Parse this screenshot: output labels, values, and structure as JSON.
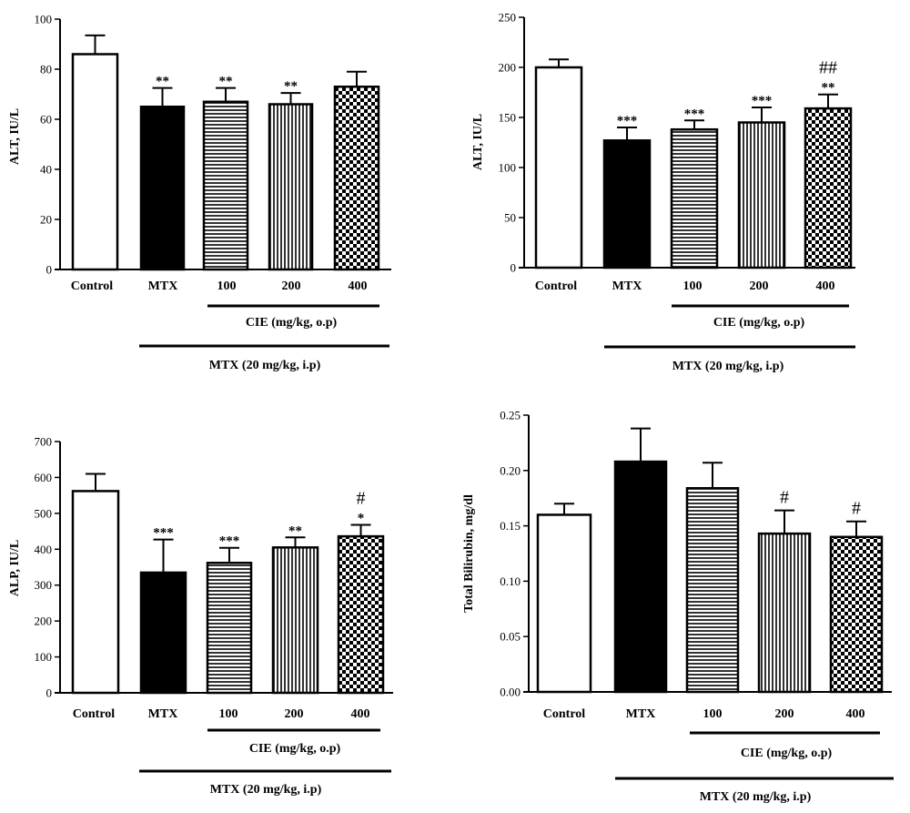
{
  "figure": {
    "groups": {
      "cie": "CIE (mg/kg, o.p)",
      "mtx": "MTX (20 mg/kg, i.p)"
    },
    "fills": [
      "open",
      "solid",
      "horizontal",
      "vertical",
      "checker"
    ]
  },
  "chart_data": [
    {
      "type": "bar",
      "ylabel": "ALT, IU/L",
      "categories": [
        "Control",
        "MTX",
        "100",
        "200",
        "400"
      ],
      "values": [
        86,
        65,
        67,
        66,
        73
      ],
      "errors": [
        7.5,
        7.5,
        5.5,
        4.5,
        6
      ],
      "ylim": [
        0,
        100
      ],
      "yticks": [
        "0",
        "20",
        "40",
        "60",
        "80",
        "100"
      ],
      "annotations": [
        [
          "",
          ""
        ],
        [
          "**",
          ""
        ],
        [
          "**",
          ""
        ],
        [
          "**",
          ""
        ],
        [
          "",
          ""
        ]
      ],
      "grid": false
    },
    {
      "type": "bar",
      "ylabel": "ALT, IU/L",
      "categories": [
        "Control",
        "MTX",
        "100",
        "200",
        "400"
      ],
      "values": [
        200,
        127,
        138,
        145,
        159
      ],
      "errors": [
        8,
        13,
        9,
        15,
        14
      ],
      "ylim": [
        0,
        250
      ],
      "yticks": [
        "0",
        "50",
        "100",
        "150",
        "200",
        "250"
      ],
      "annotations": [
        [
          "",
          ""
        ],
        [
          "***",
          ""
        ],
        [
          "***",
          ""
        ],
        [
          "***",
          ""
        ],
        [
          "**",
          "##"
        ]
      ],
      "grid": false
    },
    {
      "type": "bar",
      "ylabel": "ALP, IU/L",
      "categories": [
        "Control",
        "MTX",
        "100",
        "200",
        "400"
      ],
      "values": [
        562,
        335,
        362,
        405,
        436
      ],
      "errors": [
        48,
        92,
        42,
        28,
        32
      ],
      "ylim": [
        0,
        700
      ],
      "yticks": [
        "0",
        "100",
        "200",
        "300",
        "400",
        "500",
        "600",
        "700"
      ],
      "annotations": [
        [
          "",
          ""
        ],
        [
          "***",
          ""
        ],
        [
          "***",
          ""
        ],
        [
          "**",
          ""
        ],
        [
          "*",
          "#"
        ]
      ],
      "grid": false
    },
    {
      "type": "bar",
      "ylabel": "Total Bilirubin, mg/dl",
      "categories": [
        "Control",
        "MTX",
        "100",
        "200",
        "400"
      ],
      "values": [
        0.16,
        0.208,
        0.184,
        0.143,
        0.14
      ],
      "errors": [
        0.01,
        0.03,
        0.023,
        0.021,
        0.014
      ],
      "ylim": [
        0,
        0.25
      ],
      "yticks": [
        "0.00",
        "0.05",
        "0.10",
        "0.15",
        "0.20",
        "0.25"
      ],
      "annotations": [
        [
          "",
          ""
        ],
        [
          "",
          ""
        ],
        [
          "",
          ""
        ],
        [
          "",
          "#"
        ],
        [
          "",
          "#"
        ]
      ],
      "grid": false
    }
  ]
}
